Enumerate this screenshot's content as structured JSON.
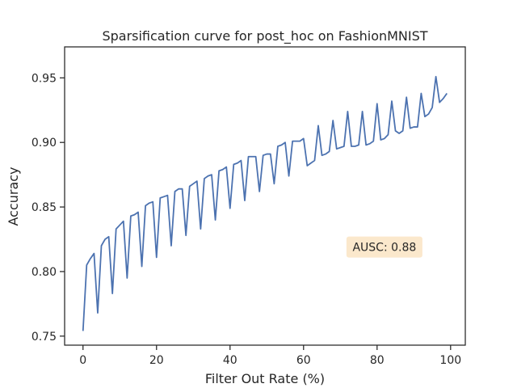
{
  "chart_data": {
    "type": "line",
    "title": "Sparsification curve for post_hoc on FashionMNIST",
    "xlabel": "Filter Out Rate (%)",
    "ylabel": "Accuracy",
    "xlim": [
      -5,
      104
    ],
    "ylim": [
      0.743,
      0.974
    ],
    "xticks": [
      0,
      20,
      40,
      60,
      80,
      100
    ],
    "xtick_labels": [
      "0",
      "20",
      "40",
      "60",
      "80",
      "100"
    ],
    "yticks": [
      0.75,
      0.8,
      0.85,
      0.9,
      0.95
    ],
    "ytick_labels": [
      "0.75",
      "0.80",
      "0.85",
      "0.90",
      "0.95"
    ],
    "grid": false,
    "legend": "none",
    "series_color": "#4c72b0",
    "annotation": {
      "text": "AUSC: 0.88",
      "x": 82,
      "y": 0.819,
      "bg": "#fbe8cc"
    },
    "series": [
      {
        "x": [
          0,
          1,
          2,
          3,
          4,
          5,
          6,
          7,
          8,
          9,
          10,
          11,
          12,
          13,
          14,
          15,
          16,
          17,
          18,
          19,
          20,
          21,
          22,
          23,
          24,
          25,
          26,
          27,
          28,
          29,
          30,
          31,
          32,
          33,
          34,
          35,
          36,
          37,
          38,
          39,
          40,
          41,
          42,
          43,
          44,
          45,
          46,
          47,
          48,
          49,
          50,
          51,
          52,
          53,
          54,
          55,
          56,
          57,
          58,
          59,
          60,
          61,
          62,
          63,
          64,
          65,
          66,
          67,
          68,
          69,
          70,
          71,
          72,
          73,
          74,
          75,
          76,
          77,
          78,
          79,
          80,
          81,
          82,
          83,
          84,
          85,
          86,
          87,
          88,
          89,
          90,
          91,
          92,
          93,
          94,
          95,
          96,
          97,
          98,
          99
        ],
        "y": [
          0.754,
          0.805,
          0.81,
          0.814,
          0.768,
          0.82,
          0.825,
          0.827,
          0.783,
          0.833,
          0.836,
          0.839,
          0.795,
          0.843,
          0.844,
          0.846,
          0.804,
          0.851,
          0.853,
          0.854,
          0.811,
          0.857,
          0.858,
          0.859,
          0.82,
          0.862,
          0.864,
          0.864,
          0.828,
          0.866,
          0.868,
          0.87,
          0.833,
          0.872,
          0.874,
          0.875,
          0.84,
          0.878,
          0.879,
          0.881,
          0.849,
          0.883,
          0.884,
          0.886,
          0.855,
          0.889,
          0.889,
          0.889,
          0.862,
          0.89,
          0.891,
          0.891,
          0.868,
          0.897,
          0.898,
          0.9,
          0.874,
          0.901,
          0.901,
          0.901,
          0.903,
          0.882,
          0.884,
          0.886,
          0.913,
          0.89,
          0.891,
          0.893,
          0.917,
          0.895,
          0.896,
          0.897,
          0.924,
          0.897,
          0.897,
          0.898,
          0.924,
          0.898,
          0.899,
          0.901,
          0.93,
          0.902,
          0.903,
          0.906,
          0.932,
          0.909,
          0.907,
          0.909,
          0.935,
          0.911,
          0.912,
          0.912,
          0.938,
          0.92,
          0.922,
          0.927,
          0.951,
          0.931,
          0.934,
          0.938
        ]
      }
    ]
  }
}
